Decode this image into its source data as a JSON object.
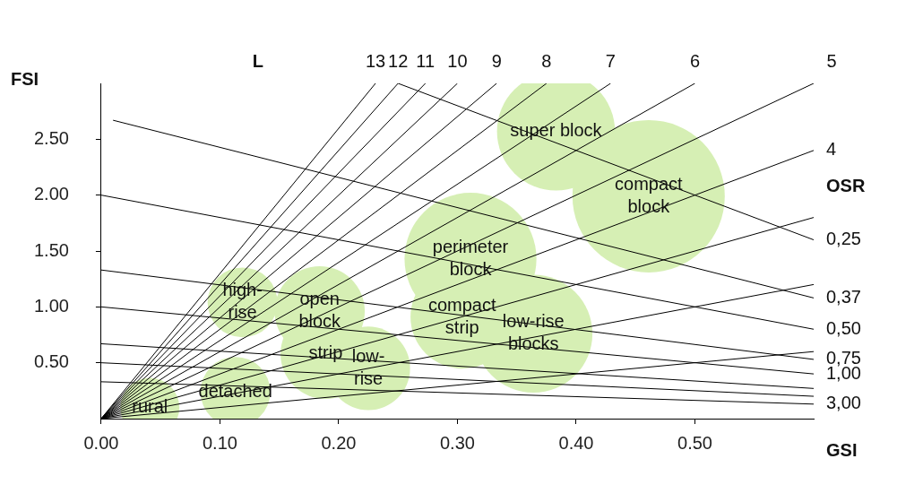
{
  "chart_data": {
    "type": "line",
    "xlabel": "GSI",
    "ylabel": "FSI",
    "xlim": [
      0,
      0.6
    ],
    "ylim": [
      0,
      3
    ],
    "xticks": [
      {
        "value": 0,
        "label": "0.00"
      },
      {
        "value": 0.1,
        "label": "0.10"
      },
      {
        "value": 0.2,
        "label": "0.20"
      },
      {
        "value": 0.3,
        "label": "0.30"
      },
      {
        "value": 0.4,
        "label": "0.40"
      },
      {
        "value": 0.5,
        "label": "0.50"
      }
    ],
    "yticks": [
      {
        "value": 0.5,
        "label": "0.50"
      },
      {
        "value": 1,
        "label": "1.00"
      },
      {
        "value": 1.5,
        "label": "1.50"
      },
      {
        "value": 2,
        "label": "2.00"
      },
      {
        "value": 2.5,
        "label": "2.50"
      }
    ],
    "grid": false,
    "annotations": [
      "L",
      "OSR"
    ],
    "series": [
      {
        "name": "13",
        "color": "#000000",
        "x": [
          0,
          0.231
        ],
        "values": [
          0,
          3
        ]
      },
      {
        "name": "12",
        "color": "#000000",
        "x": [
          0,
          0.25
        ],
        "values": [
          0,
          3
        ]
      },
      {
        "name": "11",
        "color": "#000000",
        "x": [
          0,
          0.273
        ],
        "values": [
          0,
          3
        ]
      },
      {
        "name": "10",
        "color": "#000000",
        "x": [
          0,
          0.3
        ],
        "values": [
          0,
          3
        ]
      },
      {
        "name": "9",
        "color": "#000000",
        "x": [
          0,
          0.333
        ],
        "values": [
          0,
          3
        ]
      },
      {
        "name": "8",
        "color": "#000000",
        "x": [
          0,
          0.375
        ],
        "values": [
          0,
          3
        ]
      },
      {
        "name": "7",
        "color": "#000000",
        "x": [
          0,
          0.429
        ],
        "values": [
          0,
          3
        ]
      },
      {
        "name": "6",
        "color": "#000000",
        "x": [
          0,
          0.5
        ],
        "values": [
          0,
          3
        ]
      },
      {
        "name": "5",
        "color": "#000000",
        "x": [
          0,
          0.6
        ],
        "values": [
          0,
          3
        ]
      },
      {
        "name": "4",
        "color": "#000000",
        "x": [
          0,
          0.6
        ],
        "values": [
          0,
          2.4
        ]
      },
      {
        "color": "#000000",
        "x": [
          0,
          0.6
        ],
        "values": [
          0,
          1.8
        ]
      },
      {
        "color": "#000000",
        "x": [
          0,
          0.6
        ],
        "values": [
          0,
          1.2
        ]
      },
      {
        "color": "#000000",
        "x": [
          0,
          0.6
        ],
        "values": [
          0,
          0.6
        ]
      },
      {
        "name": "0,25",
        "color": "#000000",
        "x": [
          0.25,
          0.6
        ],
        "values": [
          3,
          1.6
        ]
      },
      {
        "name": "0,37",
        "color": "#000000",
        "x": [
          0.01,
          0.6
        ],
        "values": [
          2.67,
          1.08
        ]
      },
      {
        "name": "0,50",
        "color": "#000000",
        "x": [
          0,
          0.6
        ],
        "values": [
          2,
          0.8
        ]
      },
      {
        "name": "0,75",
        "color": "#000000",
        "x": [
          0,
          0.6
        ],
        "values": [
          1.33,
          0.53
        ]
      },
      {
        "name": "1,00",
        "color": "#000000",
        "x": [
          0,
          0.6
        ],
        "values": [
          1,
          0.4
        ]
      },
      {
        "color": "#000000",
        "x": [
          0,
          0.6
        ],
        "values": [
          0.67,
          0.27
        ]
      },
      {
        "color": "#000000",
        "x": [
          0,
          0.6
        ],
        "values": [
          0.5,
          0.2
        ]
      },
      {
        "name": "3,00",
        "color": "#000000",
        "x": [
          0,
          0.6
        ],
        "values": [
          0.33,
          0.13
        ]
      },
      {
        "type": "bubble",
        "name": "super block",
        "color": "#d6efb4",
        "x": [
          0.383
        ],
        "values": [
          2.57
        ],
        "sizes": [
          0.6
        ]
      },
      {
        "type": "bubble",
        "name": "compact\nblock",
        "color": "#d6efb4",
        "x": [
          0.461
        ],
        "values": [
          1.99
        ],
        "sizes": [
          1
        ]
      },
      {
        "type": "bubble",
        "name": "perimeter\nblock",
        "color": "#d6efb4",
        "x": [
          0.311
        ],
        "values": [
          1.43
        ],
        "sizes": [
          0.75
        ]
      },
      {
        "type": "bubble",
        "name": "compact\nstrip",
        "color": "#d6efb4",
        "x": [
          0.304
        ],
        "values": [
          0.91
        ],
        "sizes": [
          0.46
        ]
      },
      {
        "type": "bubble",
        "name": "low-rise\nblocks",
        "color": "#d6efb4",
        "x": [
          0.364
        ],
        "values": [
          0.76
        ],
        "sizes": [
          0.6
        ]
      },
      {
        "type": "bubble",
        "name": "high-\nrise",
        "color": "#d6efb4",
        "x": [
          0.119
        ],
        "values": [
          1.04
        ],
        "sizes": [
          0.21
        ]
      },
      {
        "type": "bubble",
        "name": "open\nblock",
        "color": "#d6efb4",
        "x": [
          0.184
        ],
        "values": [
          0.96
        ],
        "sizes": [
          0.35
        ]
      },
      {
        "type": "bubble",
        "name": "strip",
        "color": "#d6efb4",
        "x": [
          0.189
        ],
        "values": [
          0.58
        ],
        "sizes": [
          0.35
        ]
      },
      {
        "type": "bubble",
        "name": "low-\nrise",
        "color": "#d6efb4",
        "x": [
          0.225
        ],
        "values": [
          0.45
        ],
        "sizes": [
          0.3
        ]
      },
      {
        "type": "bubble",
        "name": "detached",
        "color": "#d6efb4",
        "x": [
          0.113
        ],
        "values": [
          0.24
        ],
        "sizes": [
          0.21
        ]
      },
      {
        "type": "bubble",
        "name": "rural",
        "color": "#d6efb4",
        "x": [
          0.041
        ],
        "values": [
          0.1
        ],
        "sizes": [
          0.15
        ]
      }
    ]
  }
}
